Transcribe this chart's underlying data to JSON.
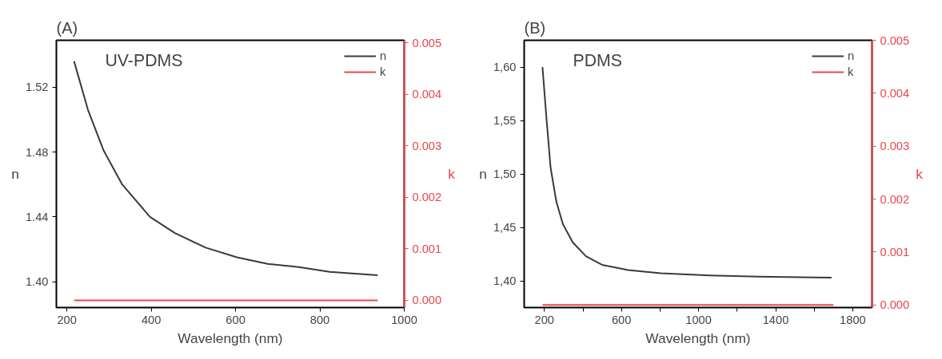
{
  "chart_data": [
    {
      "type": "line",
      "title": "(A)",
      "xlabel": "Wavelength (nm)",
      "ylabel": "n",
      "y2label": "k",
      "annotations": [
        "UV-PDMS"
      ],
      "xlim": [
        175,
        1000
      ],
      "xticks": [
        200,
        400,
        600,
        800,
        1000
      ],
      "ylim": [
        1.384,
        1.549
      ],
      "yticks": [
        {
          "value": 1.4,
          "label": "1.40"
        },
        1.44,
        1.48,
        1.52
      ],
      "y2lim": [
        -0.00014,
        0.00505
      ],
      "y2ticks": [
        {
          "value": 0,
          "label": "0.000"
        },
        0.001,
        0.002,
        0.003,
        0.004,
        0.005
      ],
      "grid": false,
      "legend": "top right",
      "marker": "none",
      "line_style": "solid",
      "series": [
        {
          "name": "n",
          "color": "#3a3a3a",
          "x": [
            217,
            250,
            287,
            331,
            397,
            456,
            529,
            603,
            676,
            750,
            823,
            937
          ],
          "values": [
            1.536,
            1.506,
            1.481,
            1.46,
            1.44,
            1.43,
            1.421,
            1.415,
            1.411,
            1.409,
            1.406,
            1.404
          ]
        },
        {
          "name": "k",
          "color": "#e8474c",
          "axis": "y2",
          "x": [
            217,
            937
          ],
          "values": [
            0,
            0
          ]
        }
      ]
    },
    {
      "type": "line",
      "title": "(B)",
      "xlabel": "Wavelength (nm)",
      "ylabel": "n",
      "y2label": "k",
      "annotations": [
        "PDMS"
      ],
      "xlim": [
        95,
        1900
      ],
      "xticks": [
        200,
        {
          "value": 400,
          "label": null
        },
        600,
        {
          "value": 800,
          "label": null
        },
        1000,
        {
          "value": 1200,
          "label": null
        },
        1400,
        {
          "value": 1600,
          "label": null
        },
        1800
      ],
      "ylim": [
        1.375,
        1.625
      ],
      "yticks": [
        {
          "value": 1.4,
          "label": "1,40"
        },
        {
          "value": 1.45,
          "label": "1,45"
        },
        {
          "value": 1.5,
          "label": "1,50"
        },
        {
          "value": 1.55,
          "label": "1,55"
        },
        {
          "value": 1.6,
          "label": "1,60"
        }
      ],
      "y2lim": [
        -5e-05,
        0.005
      ],
      "y2ticks": [
        {
          "value": 0,
          "label": "0.000"
        },
        0.001,
        0.002,
        0.003,
        0.004,
        0.005
      ],
      "grid": false,
      "legend": "top right",
      "marker": "none",
      "line_style": "solid",
      "series": [
        {
          "name": "n",
          "color": "#3a3a3a",
          "x": [
            190,
            212,
            232,
            262,
            296,
            347,
            415,
            499,
            634,
            803,
            1056,
            1310,
            1690
          ],
          "values": [
            1.6,
            1.549,
            1.506,
            1.474,
            1.453,
            1.436,
            1.423,
            1.415,
            1.41,
            1.407,
            1.405,
            1.404,
            1.403
          ]
        },
        {
          "name": "k",
          "color": "#e8474c",
          "axis": "y2",
          "x": [
            190,
            1700
          ],
          "values": [
            0,
            0
          ]
        }
      ]
    }
  ]
}
